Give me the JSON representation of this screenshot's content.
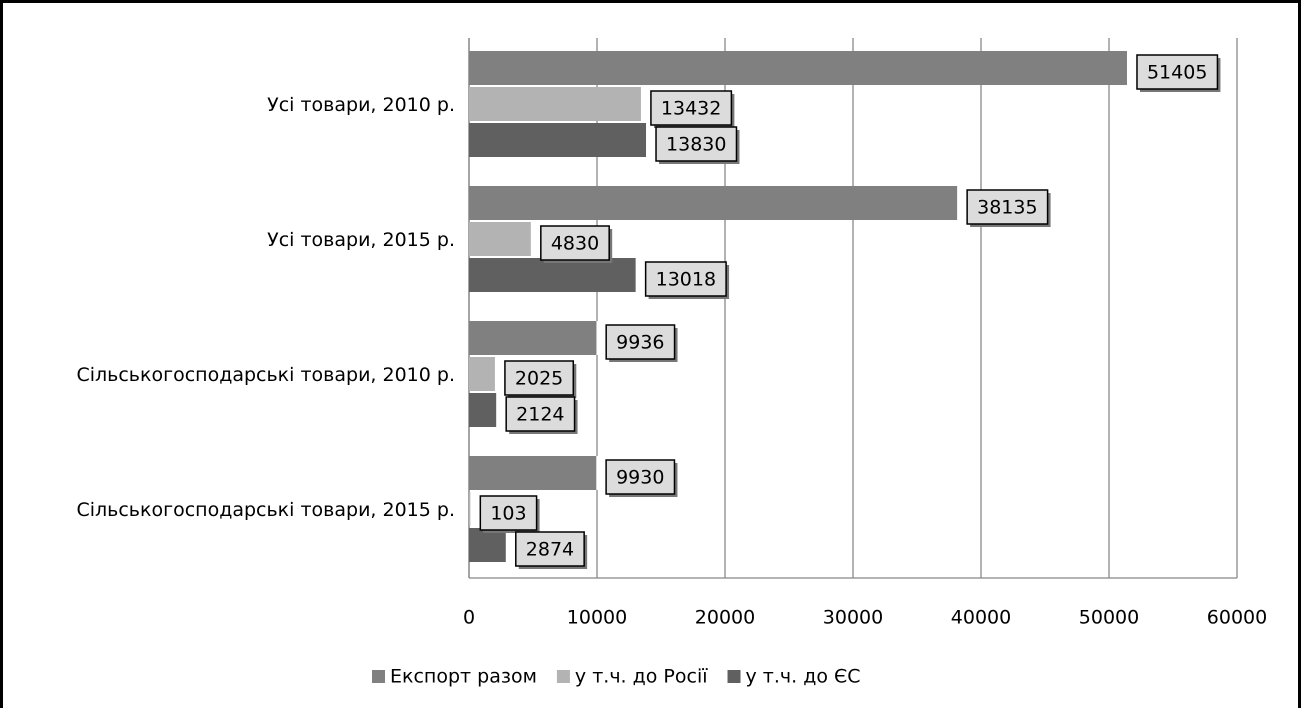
{
  "chart_data": {
    "type": "barh",
    "categories": [
      "Усі товари, 2010 р.",
      "Усі товари, 2015 р.",
      "Сільськогосподарські товари, 2010 р.",
      "Сільськогосподарські товари, 2015 р."
    ],
    "series": [
      {
        "name": "Експорт разом",
        "color": "#808080",
        "values": [
          51405,
          38135,
          9936,
          9930
        ]
      },
      {
        "name": "у т.ч. до Росії",
        "color": "#b3b3b3",
        "values": [
          13432,
          4830,
          2025,
          103
        ]
      },
      {
        "name": "у т.ч. до ЄС",
        "color": "#606060",
        "values": [
          13830,
          13018,
          2124,
          2874
        ]
      }
    ],
    "xlim": [
      0,
      60000
    ],
    "xticks": [
      0,
      10000,
      20000,
      30000,
      40000,
      50000,
      60000
    ],
    "grid": true,
    "legend": "bottom"
  }
}
